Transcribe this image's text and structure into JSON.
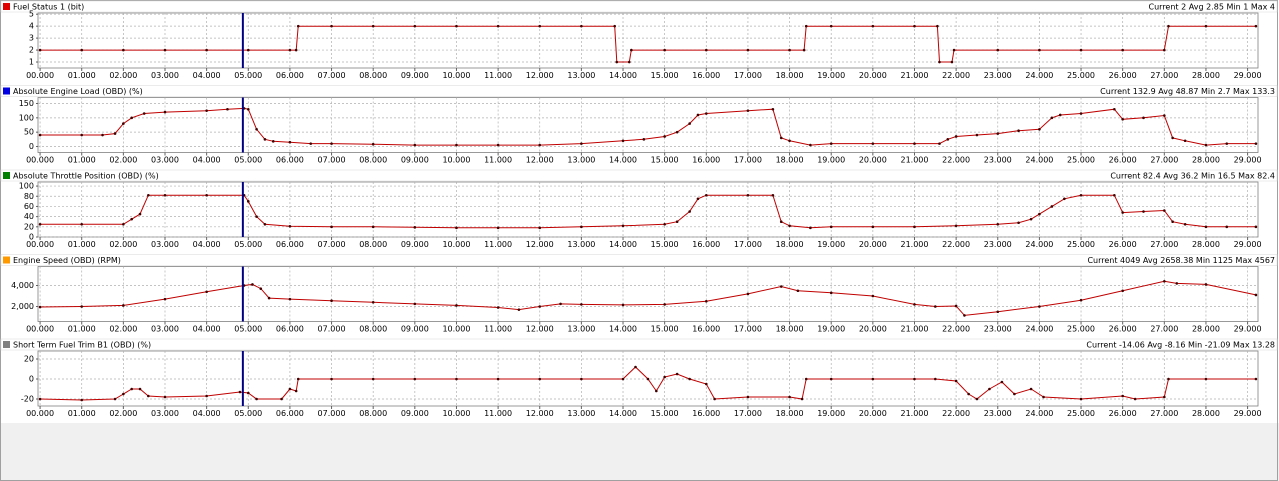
{
  "chart_data": [
    {
      "type": "line",
      "title": "Fuel Status 1 (bit)",
      "stats": "Current 2 Avg 2.85 Min 1 Max 4",
      "legend_color": "#e00000",
      "color": "#c00000",
      "cursor_x": 4.87,
      "grid": true,
      "xlim": [
        -0.05,
        29.25
      ],
      "ylim": [
        0.5,
        5.1
      ],
      "yticks": [
        1,
        2,
        3,
        4,
        5
      ],
      "xticks": [
        {
          "value": 0,
          "label": "00.000"
        },
        {
          "value": 1,
          "label": "01.000"
        },
        {
          "value": 2,
          "label": "02.000"
        },
        {
          "value": 3,
          "label": "03.000"
        },
        {
          "value": 4,
          "label": "04.000"
        },
        {
          "value": 5,
          "label": "05.000"
        },
        {
          "value": 6,
          "label": "06.000"
        },
        {
          "value": 7,
          "label": "07.000"
        },
        {
          "value": 8,
          "label": "08.000"
        },
        {
          "value": 9,
          "label": "09.000"
        },
        {
          "value": 10,
          "label": "10.000"
        },
        {
          "value": 11,
          "label": "11.000"
        },
        {
          "value": 12,
          "label": "12.000"
        },
        {
          "value": 13,
          "label": "13.000"
        },
        {
          "value": 14,
          "label": "14.000"
        },
        {
          "value": 15,
          "label": "15.000"
        },
        {
          "value": 16,
          "label": "16.000"
        },
        {
          "value": 17,
          "label": "17.000"
        },
        {
          "value": 18,
          "label": "18.000"
        },
        {
          "value": 19,
          "label": "19.000"
        },
        {
          "value": 20,
          "label": "20.000"
        },
        {
          "value": 21,
          "label": "21.000"
        },
        {
          "value": 22,
          "label": "22.000"
        },
        {
          "value": 23,
          "label": "23.000"
        },
        {
          "value": 24,
          "label": "24.000"
        },
        {
          "value": 25,
          "label": "25.000"
        },
        {
          "value": 26,
          "label": "26.000"
        },
        {
          "value": 27,
          "label": "27.000"
        },
        {
          "value": 28,
          "label": "28.000"
        },
        {
          "value": 29,
          "label": "29.000"
        }
      ],
      "x": [
        0,
        1,
        2,
        3,
        4,
        5,
        6,
        6.15,
        6.2,
        7,
        8,
        9,
        10,
        11,
        12,
        13,
        13.8,
        13.85,
        14.15,
        14.2,
        15,
        16,
        17,
        18,
        18.35,
        18.4,
        19,
        20,
        21,
        21.55,
        21.6,
        21.9,
        21.95,
        23,
        24,
        25,
        26,
        27,
        27.1,
        28,
        29.2
      ],
      "values": [
        2,
        2,
        2,
        2,
        2,
        2,
        2,
        2,
        4,
        4,
        4,
        4,
        4,
        4,
        4,
        4,
        4,
        1,
        1,
        2,
        2,
        2,
        2,
        2,
        2,
        4,
        4,
        4,
        4,
        4,
        1,
        1,
        2,
        2,
        2,
        2,
        2,
        2,
        4,
        4,
        4
      ]
    },
    {
      "type": "line",
      "title": "Absolute Engine Load (OBD) (%)",
      "stats": "Current 132.9 Avg 48.87 Min 2.7 Max 133.3",
      "legend_color": "#0000e0",
      "color": "#c00000",
      "cursor_x": 4.87,
      "grid": true,
      "xlim": [
        -0.05,
        29.25
      ],
      "ylim": [
        -21,
        171
      ],
      "yticks": [
        0,
        50,
        100,
        150
      ],
      "xticks": [
        {
          "value": 0,
          "label": "00.000"
        },
        {
          "value": 1,
          "label": "01.000"
        },
        {
          "value": 2,
          "label": "02.000"
        },
        {
          "value": 3,
          "label": "03.000"
        },
        {
          "value": 4,
          "label": "04.000"
        },
        {
          "value": 5,
          "label": "05.000"
        },
        {
          "value": 6,
          "label": "06.000"
        },
        {
          "value": 7,
          "label": "07.000"
        },
        {
          "value": 8,
          "label": "08.000"
        },
        {
          "value": 9,
          "label": "09.000"
        },
        {
          "value": 10,
          "label": "10.000"
        },
        {
          "value": 11,
          "label": "11.000"
        },
        {
          "value": 12,
          "label": "12.000"
        },
        {
          "value": 13,
          "label": "13.000"
        },
        {
          "value": 14,
          "label": "14.000"
        },
        {
          "value": 15,
          "label": "15.000"
        },
        {
          "value": 16,
          "label": "16.000"
        },
        {
          "value": 17,
          "label": "17.000"
        },
        {
          "value": 18,
          "label": "18.000"
        },
        {
          "value": 19,
          "label": "19.000"
        },
        {
          "value": 20,
          "label": "20.000"
        },
        {
          "value": 21,
          "label": "21.000"
        },
        {
          "value": 22,
          "label": "22.000"
        },
        {
          "value": 23,
          "label": "23.000"
        },
        {
          "value": 24,
          "label": "24.000"
        },
        {
          "value": 25,
          "label": "25.000"
        },
        {
          "value": 26,
          "label": "26.000"
        },
        {
          "value": 27,
          "label": "27.000"
        },
        {
          "value": 28,
          "label": "28.000"
        },
        {
          "value": 29,
          "label": "29.000"
        }
      ],
      "x": [
        0,
        1,
        1.5,
        1.8,
        2,
        2.2,
        2.5,
        3,
        4,
        4.5,
        4.9,
        5,
        5.2,
        5.4,
        5.6,
        6,
        6.5,
        7,
        8,
        9,
        10,
        11,
        12,
        13,
        14,
        14.5,
        15,
        15.3,
        15.6,
        15.8,
        16,
        17,
        17.6,
        17.8,
        18,
        18.5,
        19,
        20,
        21,
        21.6,
        21.8,
        22,
        22.5,
        23,
        23.5,
        24,
        24.3,
        24.5,
        25,
        25.8,
        26,
        26.5,
        27,
        27.2,
        27.5,
        28,
        28.5,
        29.2
      ],
      "values": [
        40,
        40,
        40,
        45,
        80,
        100,
        115,
        120,
        125,
        130,
        133,
        130,
        60,
        25,
        18,
        15,
        10,
        10,
        8,
        5,
        5,
        5,
        5,
        10,
        20,
        25,
        35,
        50,
        80,
        110,
        115,
        125,
        130,
        30,
        20,
        5,
        10,
        10,
        10,
        10,
        25,
        35,
        40,
        45,
        55,
        60,
        100,
        110,
        115,
        130,
        95,
        100,
        108,
        30,
        20,
        5,
        10,
        10
      ]
    },
    {
      "type": "line",
      "title": "Absolute Throttle Position (OBD) (%)",
      "stats": "Current 82.4 Avg 36.2 Min 16.5 Max 82.4",
      "legend_color": "#008000",
      "color": "#c00000",
      "cursor_x": 4.87,
      "grid": true,
      "xlim": [
        -0.05,
        29.25
      ],
      "ylim": [
        0,
        108
      ],
      "yticks": [
        0,
        20,
        40,
        60,
        80,
        100
      ],
      "xticks": [
        {
          "value": 0,
          "label": "00.000"
        },
        {
          "value": 1,
          "label": "01.000"
        },
        {
          "value": 2,
          "label": "02.000"
        },
        {
          "value": 3,
          "label": "03.000"
        },
        {
          "value": 4,
          "label": "04.000"
        },
        {
          "value": 5,
          "label": "05.000"
        },
        {
          "value": 6,
          "label": "06.000"
        },
        {
          "value": 7,
          "label": "07.000"
        },
        {
          "value": 8,
          "label": "08.000"
        },
        {
          "value": 9,
          "label": "09.000"
        },
        {
          "value": 10,
          "label": "10.000"
        },
        {
          "value": 11,
          "label": "11.000"
        },
        {
          "value": 12,
          "label": "12.000"
        },
        {
          "value": 13,
          "label": "13.000"
        },
        {
          "value": 14,
          "label": "14.000"
        },
        {
          "value": 15,
          "label": "15.000"
        },
        {
          "value": 16,
          "label": "16.000"
        },
        {
          "value": 17,
          "label": "17.000"
        },
        {
          "value": 18,
          "label": "18.000"
        },
        {
          "value": 19,
          "label": "19.000"
        },
        {
          "value": 20,
          "label": "20.000"
        },
        {
          "value": 21,
          "label": "21.000"
        },
        {
          "value": 22,
          "label": "22.000"
        },
        {
          "value": 23,
          "label": "23.000"
        },
        {
          "value": 24,
          "label": "24.000"
        },
        {
          "value": 25,
          "label": "25.000"
        },
        {
          "value": 26,
          "label": "26.000"
        },
        {
          "value": 27,
          "label": "27.000"
        },
        {
          "value": 28,
          "label": "28.000"
        },
        {
          "value": 29,
          "label": "29.000"
        }
      ],
      "x": [
        0,
        1,
        2,
        2.2,
        2.4,
        2.6,
        3,
        4,
        4.9,
        5,
        5.2,
        5.4,
        6,
        7,
        8,
        9,
        10,
        11,
        12,
        13,
        14,
        15,
        15.3,
        15.6,
        15.8,
        16,
        17,
        17.6,
        17.8,
        18,
        18.5,
        19,
        20,
        21,
        22,
        23,
        23.5,
        23.8,
        24,
        24.3,
        24.6,
        25,
        25.8,
        26,
        26.5,
        27,
        27.2,
        27.5,
        28,
        28.5,
        29.2
      ],
      "values": [
        25,
        25,
        25,
        35,
        45,
        82,
        82,
        82,
        82,
        70,
        40,
        25,
        21,
        20,
        20,
        19,
        18,
        18,
        18,
        20,
        22,
        25,
        30,
        50,
        75,
        82,
        82,
        82,
        30,
        22,
        18,
        20,
        20,
        20,
        22,
        25,
        28,
        35,
        45,
        60,
        75,
        82,
        82,
        48,
        50,
        52,
        30,
        25,
        20,
        20,
        20
      ]
    },
    {
      "type": "line",
      "title": "Engine Speed (OBD) (RPM)",
      "stats": "Current 4049 Avg 2658.38 Min 1125 Max 4567",
      "legend_color": "#ff9900",
      "color": "#c00000",
      "cursor_x": 4.87,
      "grid": true,
      "xlim": [
        -0.05,
        29.25
      ],
      "ylim": [
        570,
        5810
      ],
      "yticks": [
        {
          "value": 2000,
          "label": "2,000"
        },
        {
          "value": 4000,
          "label": "4,000"
        }
      ],
      "xticks": [
        {
          "value": 0,
          "label": "00.000"
        },
        {
          "value": 1,
          "label": "01.000"
        },
        {
          "value": 2,
          "label": "02.000"
        },
        {
          "value": 3,
          "label": "03.000"
        },
        {
          "value": 4,
          "label": "04.000"
        },
        {
          "value": 5,
          "label": "05.000"
        },
        {
          "value": 6,
          "label": "06.000"
        },
        {
          "value": 7,
          "label": "07.000"
        },
        {
          "value": 8,
          "label": "08.000"
        },
        {
          "value": 9,
          "label": "09.000"
        },
        {
          "value": 10,
          "label": "10.000"
        },
        {
          "value": 11,
          "label": "11.000"
        },
        {
          "value": 12,
          "label": "12.000"
        },
        {
          "value": 13,
          "label": "13.000"
        },
        {
          "value": 14,
          "label": "14.000"
        },
        {
          "value": 15,
          "label": "15.000"
        },
        {
          "value": 16,
          "label": "16.000"
        },
        {
          "value": 17,
          "label": "17.000"
        },
        {
          "value": 18,
          "label": "18.000"
        },
        {
          "value": 19,
          "label": "19.000"
        },
        {
          "value": 20,
          "label": "20.000"
        },
        {
          "value": 21,
          "label": "21.000"
        },
        {
          "value": 22,
          "label": "22.000"
        },
        {
          "value": 23,
          "label": "23.000"
        },
        {
          "value": 24,
          "label": "24.000"
        },
        {
          "value": 25,
          "label": "25.000"
        },
        {
          "value": 26,
          "label": "26.000"
        },
        {
          "value": 27,
          "label": "27.000"
        },
        {
          "value": 28,
          "label": "28.000"
        },
        {
          "value": 29,
          "label": "29.000"
        }
      ],
      "x": [
        0,
        1,
        2,
        3,
        4,
        4.9,
        5.1,
        5.3,
        5.5,
        6,
        7,
        8,
        9,
        10,
        11,
        11.5,
        12,
        12.5,
        13,
        14,
        15,
        16,
        17,
        17.8,
        18.2,
        19,
        20,
        21,
        21.5,
        22,
        22.2,
        23,
        24,
        25,
        26,
        27,
        27.3,
        28,
        29.2
      ],
      "values": [
        1950,
        2000,
        2100,
        2700,
        3400,
        4000,
        4100,
        3700,
        2800,
        2700,
        2550,
        2400,
        2250,
        2100,
        1900,
        1700,
        2000,
        2250,
        2200,
        2150,
        2200,
        2500,
        3200,
        3900,
        3500,
        3300,
        3000,
        2200,
        2000,
        2050,
        1150,
        1500,
        2000,
        2600,
        3500,
        4400,
        4200,
        4100,
        3100
      ]
    },
    {
      "type": "line",
      "title": "Short Term Fuel Trim B1 (OBD) (%)",
      "stats": "Current -14.06 Avg -8.16 Min -21.09 Max 13.28",
      "legend_color": "#808080",
      "color": "#c00000",
      "cursor_x": 4.87,
      "grid": true,
      "xlim": [
        -0.05,
        29.25
      ],
      "ylim": [
        -27,
        28
      ],
      "yticks": [
        -20,
        0,
        20
      ],
      "xticks": [
        {
          "value": 0,
          "label": "00.000"
        },
        {
          "value": 1,
          "label": "01.000"
        },
        {
          "value": 2,
          "label": "02.000"
        },
        {
          "value": 3,
          "label": "03.000"
        },
        {
          "value": 4,
          "label": "04.000"
        },
        {
          "value": 5,
          "label": "05.000"
        },
        {
          "value": 6,
          "label": "06.000"
        },
        {
          "value": 7,
          "label": "07.000"
        },
        {
          "value": 8,
          "label": "08.000"
        },
        {
          "value": 9,
          "label": "09.000"
        },
        {
          "value": 10,
          "label": "10.000"
        },
        {
          "value": 11,
          "label": "11.000"
        },
        {
          "value": 12,
          "label": "12.000"
        },
        {
          "value": 13,
          "label": "13.000"
        },
        {
          "value": 14,
          "label": "14.000"
        },
        {
          "value": 15,
          "label": "15.000"
        },
        {
          "value": 16,
          "label": "16.000"
        },
        {
          "value": 17,
          "label": "17.000"
        },
        {
          "value": 18,
          "label": "18.000"
        },
        {
          "value": 19,
          "label": "19.000"
        },
        {
          "value": 20,
          "label": "20.000"
        },
        {
          "value": 21,
          "label": "21.000"
        },
        {
          "value": 22,
          "label": "22.000"
        },
        {
          "value": 23,
          "label": "23.000"
        },
        {
          "value": 24,
          "label": "24.000"
        },
        {
          "value": 25,
          "label": "25.000"
        },
        {
          "value": 26,
          "label": "26.000"
        },
        {
          "value": 27,
          "label": "27.000"
        },
        {
          "value": 28,
          "label": "28.000"
        },
        {
          "value": 29,
          "label": "29.000"
        }
      ],
      "x": [
        0,
        1,
        1.8,
        2,
        2.2,
        2.4,
        2.6,
        3,
        4,
        4.8,
        5,
        5.2,
        5.8,
        6,
        6.15,
        6.2,
        7,
        8,
        9,
        10,
        11,
        12,
        13,
        14,
        14.3,
        14.6,
        14.8,
        15,
        15.3,
        15.6,
        16,
        16.2,
        17,
        18,
        18.3,
        18.4,
        19,
        20,
        21,
        21.5,
        22,
        22.3,
        22.5,
        22.8,
        23.1,
        23.4,
        23.8,
        24.1,
        25,
        26,
        26.3,
        27,
        27.1,
        28,
        29.2
      ],
      "values": [
        -20,
        -21,
        -20,
        -15,
        -10,
        -10,
        -17,
        -18,
        -17,
        -13,
        -14,
        -20,
        -20,
        -10,
        -12,
        0,
        0,
        0,
        0,
        0,
        0,
        0,
        0,
        0,
        12,
        0,
        -12,
        2,
        5,
        0,
        -5,
        -20,
        -18,
        -18,
        -20,
        0,
        0,
        0,
        0,
        0,
        -2,
        -15,
        -20,
        -10,
        -3,
        -15,
        -10,
        -18,
        -20,
        -17,
        -20,
        -18,
        0,
        0,
        0
      ]
    }
  ]
}
